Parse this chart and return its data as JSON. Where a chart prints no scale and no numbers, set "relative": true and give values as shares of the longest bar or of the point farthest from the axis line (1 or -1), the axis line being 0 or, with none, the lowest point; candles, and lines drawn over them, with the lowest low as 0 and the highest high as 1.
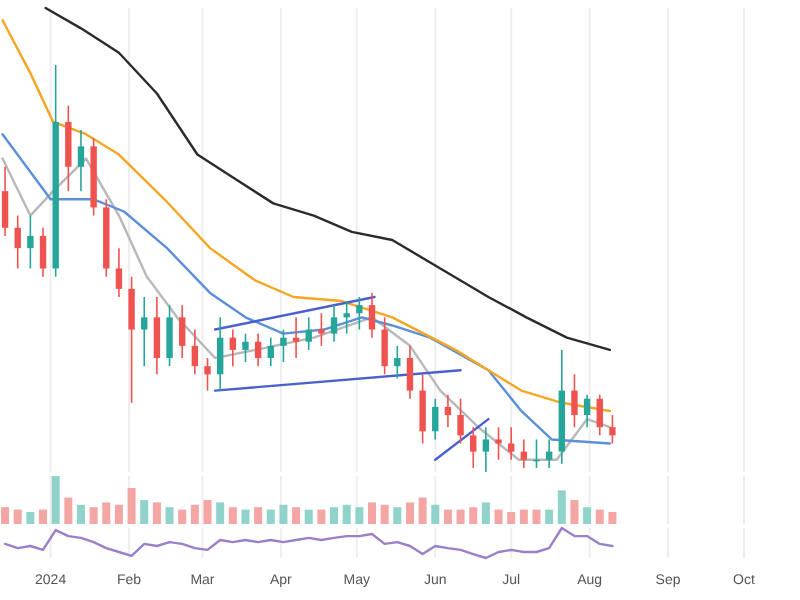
{
  "chart_data": [
    {
      "type": "candlestick",
      "relative": true,
      "tick_labels": false,
      "grid": "x",
      "xlim": [
        "2023-12-12",
        "2024-10-01"
      ],
      "xticks": [
        {
          "value": "2024-01-01",
          "label": null
        },
        {
          "value": "2024-02-01",
          "label": null
        },
        {
          "value": "2024-03-01",
          "label": null
        },
        {
          "value": "2024-04-01",
          "label": null
        },
        {
          "value": "2024-05-01",
          "label": null
        },
        {
          "value": "2024-06-01",
          "label": null
        },
        {
          "value": "2024-07-01",
          "label": null
        },
        {
          "value": "2024-08-01",
          "label": null
        },
        {
          "value": "2024-09-01",
          "label": null
        },
        {
          "value": "2024-10-01",
          "label": null
        }
      ],
      "x": [
        "2023-12-14",
        "2023-12-19",
        "2023-12-24",
        "2023-12-29",
        "2024-01-03",
        "2024-01-08",
        "2024-01-13",
        "2024-01-18",
        "2024-01-23",
        "2024-01-28",
        "2024-02-02",
        "2024-02-07",
        "2024-02-12",
        "2024-02-17",
        "2024-02-22",
        "2024-02-27",
        "2024-03-03",
        "2024-03-08",
        "2024-03-13",
        "2024-03-18",
        "2024-03-23",
        "2024-03-28",
        "2024-04-02",
        "2024-04-07",
        "2024-04-12",
        "2024-04-17",
        "2024-04-22",
        "2024-04-27",
        "2024-05-02",
        "2024-05-07",
        "2024-05-12",
        "2024-05-17",
        "2024-05-22",
        "2024-05-27",
        "2024-06-01",
        "2024-06-06",
        "2024-06-11",
        "2024-06-16",
        "2024-06-21",
        "2024-06-26",
        "2024-07-01",
        "2024-07-06",
        "2024-07-11",
        "2024-07-16",
        "2024-07-21",
        "2024-07-26",
        "2024-07-31",
        "2024-08-05",
        "2024-08-10"
      ],
      "ohlc": [
        [
          0.69,
          0.75,
          0.58,
          0.6
        ],
        [
          0.6,
          0.63,
          0.5,
          0.55
        ],
        [
          0.55,
          0.63,
          0.5,
          0.58
        ],
        [
          0.58,
          0.6,
          0.48,
          0.5
        ],
        [
          0.5,
          1,
          0.48,
          0.86
        ],
        [
          0.86,
          0.9,
          0.69,
          0.75
        ],
        [
          0.75,
          0.84,
          0.69,
          0.8
        ],
        [
          0.8,
          0.82,
          0.63,
          0.65
        ],
        [
          0.65,
          0.67,
          0.48,
          0.5
        ],
        [
          0.5,
          0.55,
          0.43,
          0.45
        ],
        [
          0.45,
          0.48,
          0.17,
          0.35
        ],
        [
          0.35,
          0.43,
          0.26,
          0.38
        ],
        [
          0.38,
          0.43,
          0.24,
          0.28
        ],
        [
          0.28,
          0.41,
          0.26,
          0.38
        ],
        [
          0.38,
          0.41,
          0.28,
          0.31
        ],
        [
          0.31,
          0.35,
          0.24,
          0.26
        ],
        [
          0.26,
          0.28,
          0.2,
          0.24
        ],
        [
          0.24,
          0.38,
          0.2,
          0.33
        ],
        [
          0.33,
          0.35,
          0.26,
          0.3
        ],
        [
          0.3,
          0.34,
          0.27,
          0.32
        ],
        [
          0.32,
          0.34,
          0.26,
          0.28
        ],
        [
          0.28,
          0.33,
          0.26,
          0.31
        ],
        [
          0.31,
          0.35,
          0.27,
          0.33
        ],
        [
          0.33,
          0.38,
          0.28,
          0.32
        ],
        [
          0.32,
          0.38,
          0.3,
          0.35
        ],
        [
          0.35,
          0.39,
          0.31,
          0.34
        ],
        [
          0.34,
          0.41,
          0.32,
          0.38
        ],
        [
          0.38,
          0.42,
          0.34,
          0.39
        ],
        [
          0.39,
          0.43,
          0.35,
          0.41
        ],
        [
          0.41,
          0.44,
          0.33,
          0.35
        ],
        [
          0.35,
          0.38,
          0.24,
          0.26
        ],
        [
          0.26,
          0.31,
          0.23,
          0.28
        ],
        [
          0.28,
          0.31,
          0.18,
          0.2
        ],
        [
          0.2,
          0.24,
          0.07,
          0.1
        ],
        [
          0.1,
          0.18,
          0.08,
          0.16
        ],
        [
          0.16,
          0.19,
          0.11,
          0.14
        ],
        [
          0.14,
          0.18,
          0.07,
          0.09
        ],
        [
          0.09,
          0.11,
          0.01,
          0.05
        ],
        [
          0.05,
          0.11,
          0,
          0.08
        ],
        [
          0.08,
          0.11,
          0.03,
          0.07
        ],
        [
          0.07,
          0.11,
          0.03,
          0.05
        ],
        [
          0.05,
          0.08,
          0.01,
          0.03
        ],
        [
          0.03,
          0.08,
          0.01,
          0.03
        ],
        [
          0.03,
          0.08,
          0.01,
          0.05
        ],
        [
          0.05,
          0.3,
          0.02,
          0.2
        ],
        [
          0.2,
          0.24,
          0.11,
          0.14
        ],
        [
          0.14,
          0.19,
          0.11,
          0.18
        ],
        [
          0.18,
          0.19,
          0.09,
          0.11
        ],
        [
          0.11,
          0.14,
          0.07,
          0.09
        ]
      ],
      "series": [
        {
          "type": "line",
          "color": "#b8b8b8",
          "x": [
            "2023-12-13",
            "2023-12-24",
            "2024-01-02",
            "2024-01-15",
            "2024-01-28",
            "2024-02-08",
            "2024-02-20",
            "2024-03-06",
            "2024-03-22",
            "2024-04-14",
            "2024-05-07",
            "2024-05-22",
            "2024-06-03",
            "2024-06-18",
            "2024-07-04",
            "2024-07-19",
            "2024-07-31",
            "2024-08-09"
          ],
          "values": [
            0.77,
            0.63,
            0.69,
            0.77,
            0.63,
            0.48,
            0.38,
            0.28,
            0.3,
            0.33,
            0.38,
            0.31,
            0.2,
            0.11,
            0.03,
            0.03,
            0.13,
            0.11
          ]
        },
        {
          "type": "line",
          "color": "#5b8fd9",
          "x": [
            "2023-12-13",
            "2024-01-01",
            "2024-01-18",
            "2024-01-30",
            "2024-02-16",
            "2024-03-04",
            "2024-03-18",
            "2024-04-02",
            "2024-04-18",
            "2024-05-03",
            "2024-05-15",
            "2024-05-30",
            "2024-06-22",
            "2024-07-05",
            "2024-07-17",
            "2024-08-09"
          ],
          "values": [
            0.83,
            0.67,
            0.67,
            0.64,
            0.55,
            0.44,
            0.38,
            0.34,
            0.35,
            0.38,
            0.36,
            0.33,
            0.25,
            0.15,
            0.08,
            0.07
          ]
        },
        {
          "type": "line",
          "color": "#f5a623",
          "x": [
            "2023-12-13",
            "2023-12-24",
            "2024-01-02",
            "2024-01-15",
            "2024-01-28",
            "2024-02-15",
            "2024-03-04",
            "2024-03-22",
            "2024-04-06",
            "2024-04-25",
            "2024-05-15",
            "2024-06-09",
            "2024-07-05",
            "2024-07-21",
            "2024-08-09"
          ],
          "values": [
            1.11,
            0.98,
            0.86,
            0.83,
            0.78,
            0.67,
            0.55,
            0.47,
            0.43,
            0.42,
            0.38,
            0.3,
            0.2,
            0.17,
            0.15
          ]
        },
        {
          "type": "line",
          "color": "#2b2b2b",
          "x": [
            "2023-12-30",
            "2024-01-13",
            "2024-01-28",
            "2024-02-12",
            "2024-02-28",
            "2024-03-14",
            "2024-03-29",
            "2024-04-14",
            "2024-04-29",
            "2024-05-15",
            "2024-06-03",
            "2024-06-22",
            "2024-07-07",
            "2024-07-23",
            "2024-08-09"
          ],
          "values": [
            1.14,
            1.09,
            1.03,
            0.93,
            0.78,
            0.72,
            0.66,
            0.63,
            0.59,
            0.57,
            0.5,
            0.43,
            0.38,
            0.33,
            0.3
          ]
        },
        {
          "type": "line",
          "color": "#4a5fd0",
          "x": [
            "2024-03-06",
            "2024-05-08"
          ],
          "values": [
            0.35,
            0.43
          ]
        },
        {
          "type": "line",
          "color": "#4a5fd0",
          "x": [
            "2024-03-06",
            "2024-06-11"
          ],
          "values": [
            0.2,
            0.25
          ]
        },
        {
          "type": "line",
          "color": "#4a5fd0",
          "x": [
            "2024-06-01",
            "2024-06-22"
          ],
          "values": [
            0.03,
            0.13
          ]
        }
      ]
    },
    {
      "type": "bar",
      "relative": true,
      "tick_labels": false,
      "grid": "x",
      "xlim": [
        "2023-12-12",
        "2024-10-01"
      ],
      "xticks": [
        {
          "value": "2024-01-01",
          "label": null
        },
        {
          "value": "2024-02-01",
          "label": null
        },
        {
          "value": "2024-03-01",
          "label": null
        },
        {
          "value": "2024-04-01",
          "label": null
        },
        {
          "value": "2024-05-01",
          "label": null
        },
        {
          "value": "2024-06-01",
          "label": null
        },
        {
          "value": "2024-07-01",
          "label": null
        },
        {
          "value": "2024-08-01",
          "label": null
        },
        {
          "value": "2024-09-01",
          "label": null
        },
        {
          "value": "2024-10-01",
          "label": null
        }
      ],
      "x": [
        "2023-12-14",
        "2023-12-19",
        "2023-12-24",
        "2023-12-29",
        "2024-01-03",
        "2024-01-08",
        "2024-01-13",
        "2024-01-18",
        "2024-01-23",
        "2024-01-28",
        "2024-02-02",
        "2024-02-07",
        "2024-02-12",
        "2024-02-17",
        "2024-02-22",
        "2024-02-27",
        "2024-03-03",
        "2024-03-08",
        "2024-03-13",
        "2024-03-18",
        "2024-03-23",
        "2024-03-28",
        "2024-04-02",
        "2024-04-07",
        "2024-04-12",
        "2024-04-17",
        "2024-04-22",
        "2024-04-27",
        "2024-05-02",
        "2024-05-07",
        "2024-05-12",
        "2024-05-17",
        "2024-05-22",
        "2024-05-27",
        "2024-06-01",
        "2024-06-06",
        "2024-06-11",
        "2024-06-16",
        "2024-06-21",
        "2024-06-26",
        "2024-07-01",
        "2024-07-06",
        "2024-07-11",
        "2024-07-16",
        "2024-07-21",
        "2024-07-26",
        "2024-07-31",
        "2024-08-05",
        "2024-08-10"
      ],
      "values": [
        0.35,
        0.3,
        0.25,
        0.3,
        1,
        0.55,
        0.4,
        0.35,
        0.45,
        0.4,
        0.75,
        0.5,
        0.45,
        0.35,
        0.3,
        0.4,
        0.5,
        0.45,
        0.35,
        0.3,
        0.35,
        0.3,
        0.4,
        0.35,
        0.3,
        0.3,
        0.35,
        0.4,
        0.35,
        0.45,
        0.4,
        0.35,
        0.45,
        0.55,
        0.4,
        0.3,
        0.3,
        0.35,
        0.45,
        0.3,
        0.25,
        0.3,
        0.3,
        0.3,
        0.7,
        0.5,
        0.35,
        0.3,
        0.25
      ],
      "colors": [
        "#f4a6a4",
        "#f4a6a4",
        "#8fd3cb",
        "#f4a6a4",
        "#8fd3cb",
        "#f4a6a4",
        "#8fd3cb",
        "#f4a6a4",
        "#f4a6a4",
        "#f4a6a4",
        "#f4a6a4",
        "#8fd3cb",
        "#f4a6a4",
        "#8fd3cb",
        "#f4a6a4",
        "#f4a6a4",
        "#f4a6a4",
        "#8fd3cb",
        "#f4a6a4",
        "#8fd3cb",
        "#f4a6a4",
        "#8fd3cb",
        "#8fd3cb",
        "#f4a6a4",
        "#8fd3cb",
        "#f4a6a4",
        "#8fd3cb",
        "#8fd3cb",
        "#8fd3cb",
        "#f4a6a4",
        "#f4a6a4",
        "#8fd3cb",
        "#f4a6a4",
        "#f4a6a4",
        "#8fd3cb",
        "#f4a6a4",
        "#f4a6a4",
        "#f4a6a4",
        "#8fd3cb",
        "#f4a6a4",
        "#f4a6a4",
        "#f4a6a4",
        "#f4a6a4",
        "#8fd3cb",
        "#8fd3cb",
        "#f4a6a4",
        "#8fd3cb",
        "#f4a6a4",
        "#f4a6a4"
      ]
    },
    {
      "type": "line",
      "relative": true,
      "tick_labels": "x",
      "grid": "x",
      "xlim": [
        "2023-12-12",
        "2024-10-01"
      ],
      "xticks": [
        {
          "value": "2024-01-01",
          "label": "2024"
        },
        {
          "value": "2024-02-01",
          "label": "Feb"
        },
        {
          "value": "2024-03-01",
          "label": "Mar"
        },
        {
          "value": "2024-04-01",
          "label": "Apr"
        },
        {
          "value": "2024-05-01",
          "label": "May"
        },
        {
          "value": "2024-06-01",
          "label": "Jun"
        },
        {
          "value": "2024-07-01",
          "label": "Jul"
        },
        {
          "value": "2024-08-01",
          "label": "Aug"
        },
        {
          "value": "2024-09-01",
          "label": "Sep"
        },
        {
          "value": "2024-10-01",
          "label": "Oct"
        }
      ],
      "x": [
        "2023-12-14",
        "2023-12-19",
        "2023-12-24",
        "2023-12-29",
        "2024-01-03",
        "2024-01-08",
        "2024-01-13",
        "2024-01-18",
        "2024-01-23",
        "2024-01-28",
        "2024-02-02",
        "2024-02-07",
        "2024-02-12",
        "2024-02-17",
        "2024-02-22",
        "2024-02-27",
        "2024-03-03",
        "2024-03-08",
        "2024-03-13",
        "2024-03-18",
        "2024-03-23",
        "2024-03-28",
        "2024-04-02",
        "2024-04-07",
        "2024-04-12",
        "2024-04-17",
        "2024-04-22",
        "2024-04-27",
        "2024-05-02",
        "2024-05-07",
        "2024-05-12",
        "2024-05-17",
        "2024-05-22",
        "2024-05-27",
        "2024-06-01",
        "2024-06-06",
        "2024-06-11",
        "2024-06-16",
        "2024-06-21",
        "2024-06-26",
        "2024-07-01",
        "2024-07-06",
        "2024-07-11",
        "2024-07-16",
        "2024-07-21",
        "2024-07-26",
        "2024-07-31",
        "2024-08-05",
        "2024-08-10"
      ],
      "color": "#9c7fc9",
      "values": [
        0.47,
        0.33,
        0.4,
        0.27,
        0.93,
        0.73,
        0.67,
        0.53,
        0.33,
        0.2,
        0.07,
        0.47,
        0.4,
        0.53,
        0.47,
        0.33,
        0.27,
        0.6,
        0.53,
        0.6,
        0.53,
        0.6,
        0.53,
        0.6,
        0.67,
        0.6,
        0.67,
        0.73,
        0.73,
        0.8,
        0.47,
        0.53,
        0.4,
        0.13,
        0.4,
        0.33,
        0.27,
        0.13,
        0,
        0.2,
        0.27,
        0.2,
        0.2,
        0.33,
        1,
        0.73,
        0.73,
        0.47,
        0.4
      ]
    }
  ]
}
